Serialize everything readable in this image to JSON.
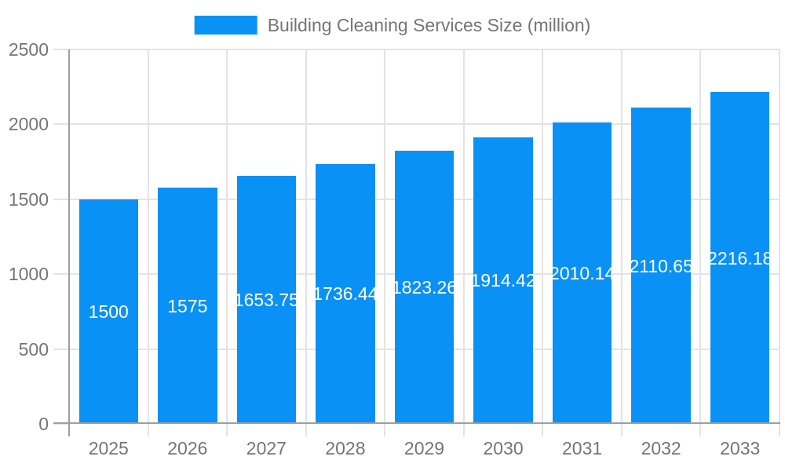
{
  "chart_data": {
    "type": "bar",
    "title": "Building Cleaning Services Size (million)",
    "categories": [
      "2025",
      "2026",
      "2027",
      "2028",
      "2029",
      "2030",
      "2031",
      "2032",
      "2033"
    ],
    "values": [
      1500,
      1575,
      1653.75,
      1736.44,
      1823.26,
      1914.42,
      2010.14,
      2110.65,
      2216.18
    ],
    "value_labels": [
      "1500",
      "1575",
      "1653.75",
      "1736.44",
      "1823.26",
      "1914.42",
      "2010.14",
      "2110.65",
      "2216.18"
    ],
    "xlabel": "",
    "ylabel": "",
    "ylim": [
      0,
      2500
    ],
    "yticks": [
      0,
      500,
      1000,
      1500,
      2000,
      2500
    ],
    "grid": true,
    "legend_position": "top",
    "colors": {
      "bar": "#0a91f5",
      "grid": "#e3e3e3",
      "axis": "#9e9e9e",
      "text": "#757575",
      "bar_label": "#ffffff",
      "background": "#ffffff"
    }
  }
}
